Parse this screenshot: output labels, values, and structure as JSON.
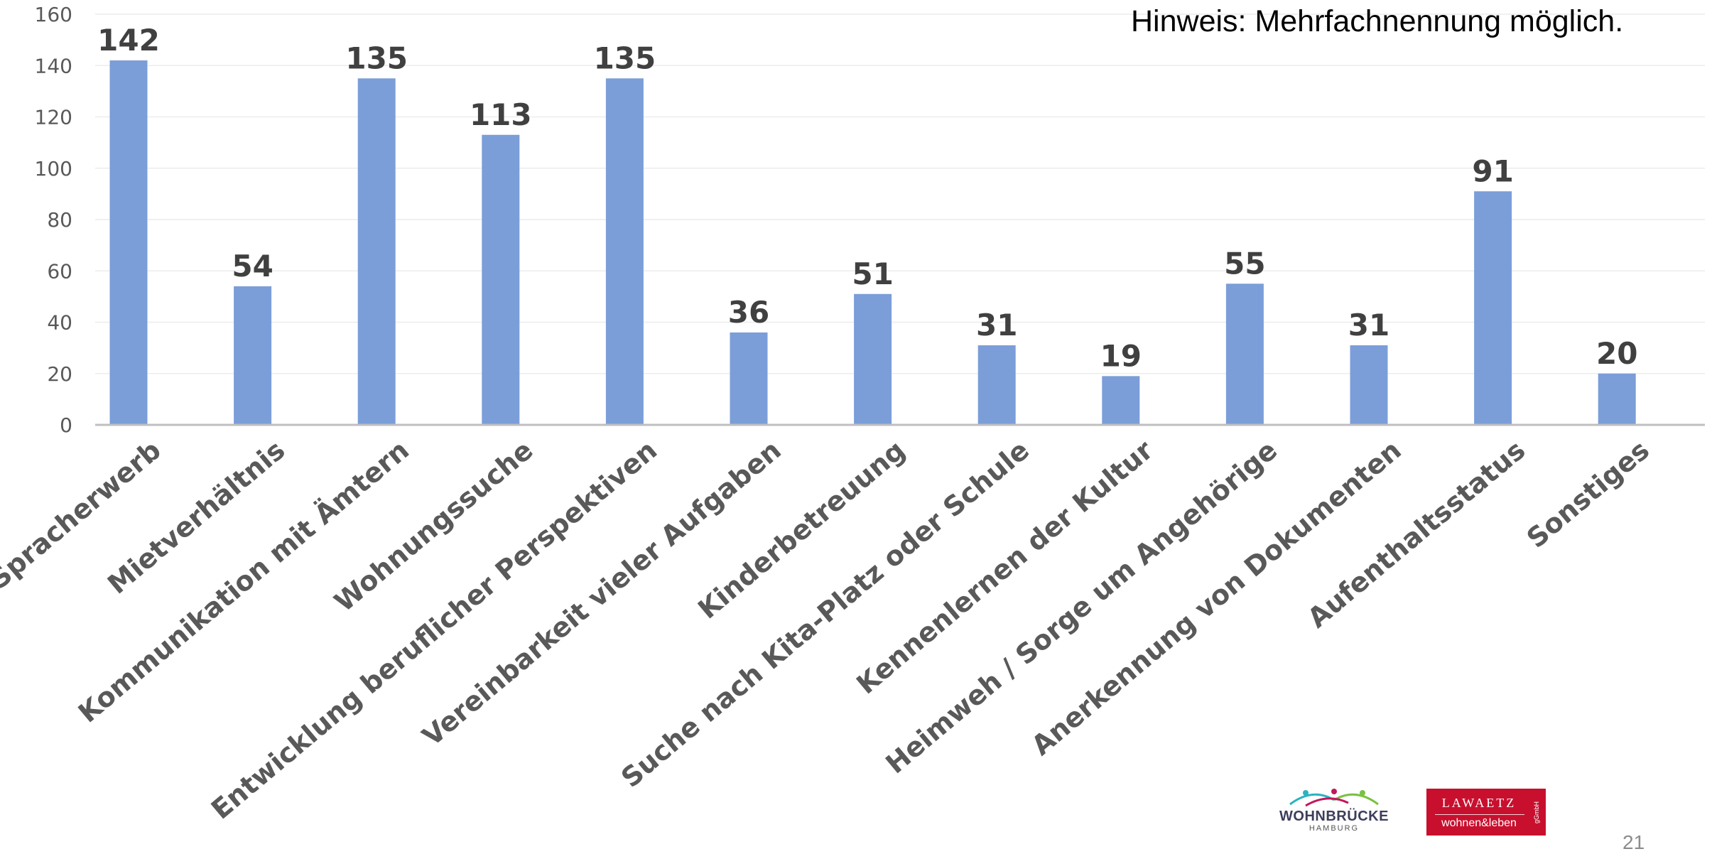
{
  "note": "Hinweis: Mehrfachnennung möglich.",
  "page_number": "21",
  "logos": {
    "wohnbruecke_name": "WOHNBRÜCKE",
    "wohnbruecke_sub": "HAMBURG",
    "lawaetz_top": "LAWAETZ",
    "lawaetz_bottom": "wohnen&leben",
    "lawaetz_side": "gGmbH"
  },
  "colors": {
    "bar": "#7b9ed8",
    "grid": "#ececec",
    "axis": "#bfbfbf"
  },
  "chart_data": {
    "type": "bar",
    "title": "",
    "xlabel": "",
    "ylabel": "",
    "ylim": [
      0,
      160
    ],
    "yticks": [
      0,
      20,
      40,
      60,
      80,
      100,
      120,
      140,
      160
    ],
    "grid": true,
    "data_labels": true,
    "categories": [
      "Spracherwerb",
      "Mietverhältnis",
      "Kommunikation mit Ämtern",
      "Wohnungssuche",
      "Entwicklung beruflicher Perspektiven",
      "Vereinbarkeit vieler Aufgaben",
      "Kinderbetreuung",
      "Suche nach Kita-Platz oder Schule",
      "Kennenlernen der Kultur",
      "Heimweh / Sorge um Angehörige",
      "Anerkennung von Dokumenten",
      "Aufenthaltsstatus",
      "Sonstiges"
    ],
    "values": [
      142,
      54,
      135,
      113,
      135,
      36,
      51,
      31,
      19,
      55,
      31,
      91,
      20
    ]
  }
}
